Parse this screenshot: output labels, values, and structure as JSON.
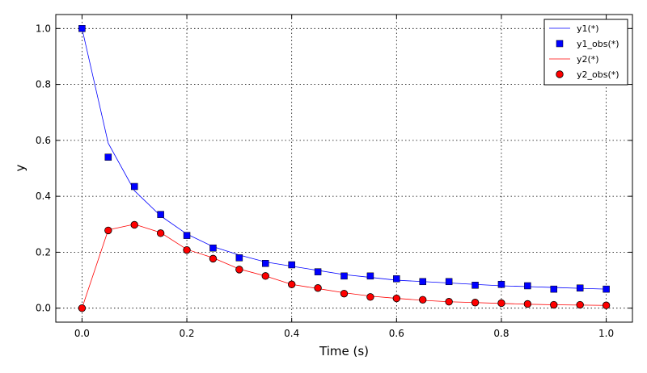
{
  "chart_data": {
    "type": "line",
    "title": "",
    "xlabel": "Time (s)",
    "ylabel": "y",
    "xlim": [
      -0.05,
      1.05
    ],
    "ylim": [
      -0.05,
      1.05
    ],
    "xticks": [
      "0.0",
      "0.2",
      "0.4",
      "0.6",
      "0.8",
      "1.0"
    ],
    "yticks": [
      "0.0",
      "0.2",
      "0.4",
      "0.6",
      "0.8",
      "1.0"
    ],
    "grid": true,
    "legend_position": "top-right",
    "x": [
      0.0,
      0.05,
      0.1,
      0.15,
      0.2,
      0.25,
      0.3,
      0.35,
      0.4,
      0.45,
      0.5,
      0.55,
      0.6,
      0.65,
      0.7,
      0.75,
      0.8,
      0.85,
      0.9,
      0.95,
      1.0
    ],
    "series": [
      {
        "name": "y1(*)",
        "kind": "line",
        "color": "#0000ff",
        "values": [
          1.0,
          0.59,
          0.42,
          0.33,
          0.265,
          0.22,
          0.19,
          0.165,
          0.15,
          0.135,
          0.12,
          0.11,
          0.1,
          0.095,
          0.09,
          0.085,
          0.08,
          0.077,
          0.074,
          0.071,
          0.068
        ]
      },
      {
        "name": "y1_obs(*)",
        "kind": "scatter",
        "marker": "square",
        "color": "#0000ff",
        "values": [
          1.0,
          0.54,
          0.435,
          0.335,
          0.26,
          0.215,
          0.18,
          0.16,
          0.155,
          0.13,
          0.115,
          0.115,
          0.105,
          0.095,
          0.095,
          0.082,
          0.085,
          0.08,
          0.068,
          0.072,
          0.068
        ]
      },
      {
        "name": "y2(*)",
        "kind": "line",
        "color": "#ff0000",
        "values": [
          0.0,
          0.28,
          0.3,
          0.27,
          0.21,
          0.18,
          0.14,
          0.115,
          0.085,
          0.07,
          0.055,
          0.043,
          0.035,
          0.028,
          0.023,
          0.02,
          0.017,
          0.014,
          0.012,
          0.011,
          0.01
        ]
      },
      {
        "name": "y2_obs(*)",
        "kind": "scatter",
        "marker": "circle",
        "color": "#ff0000",
        "values": [
          0.0,
          0.278,
          0.298,
          0.268,
          0.208,
          0.177,
          0.138,
          0.115,
          0.085,
          0.072,
          0.052,
          0.04,
          0.035,
          0.03,
          0.023,
          0.02,
          0.018,
          0.015,
          0.012,
          0.012,
          0.01
        ]
      }
    ]
  }
}
